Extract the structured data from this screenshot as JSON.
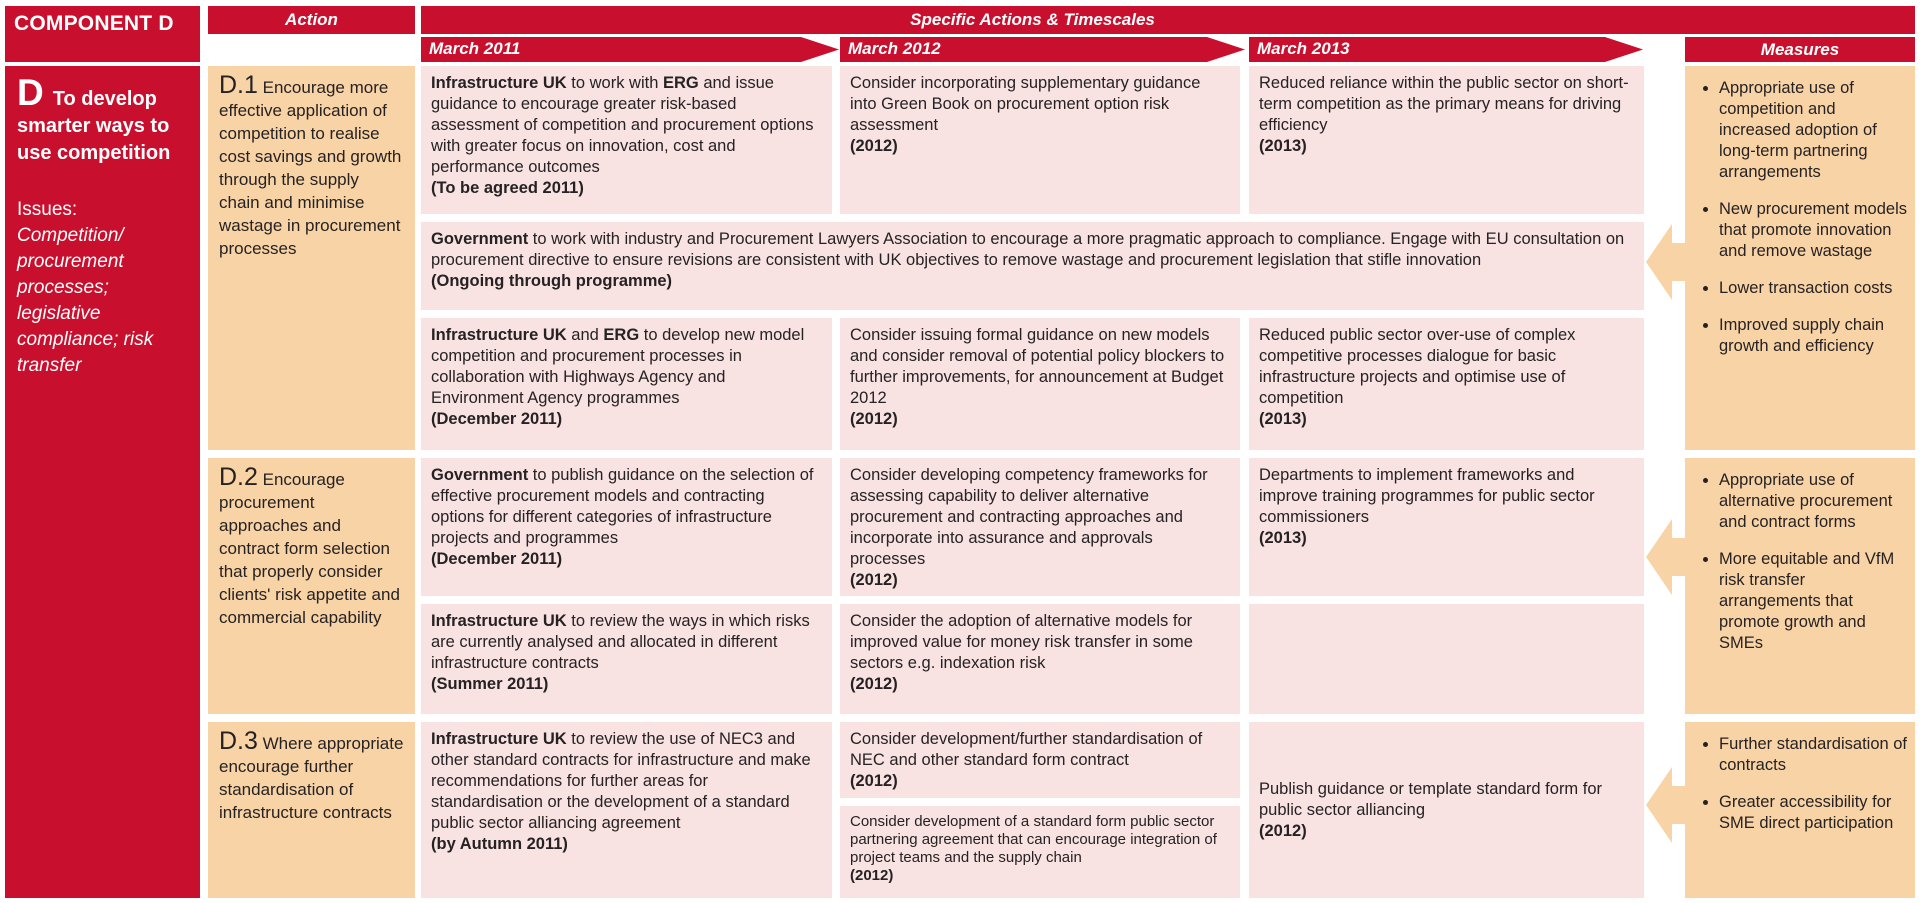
{
  "header": {
    "component": "COMPONENT D",
    "action": "Action",
    "specific": "Specific Actions & Timescales",
    "measures": "Measures",
    "timescales": [
      "March 2011",
      "March 2012",
      "March 2013"
    ]
  },
  "component": {
    "letter": "D",
    "title": "To develop smarter ways to use competition",
    "issues_label": "Issues:",
    "issues": "Competition/ procurement processes; legislative compliance; risk transfer"
  },
  "actions": [
    {
      "id": "D.1",
      "text": "Encourage more effective application of competition to realise cost savings and growth through the supply chain and minimise wastage in procurement processes"
    },
    {
      "id": "D.2",
      "text": "Encourage procurement approaches and contract form selection that properly consider clients' risk appetite and commercial capability"
    },
    {
      "id": "D.3",
      "text": "Where appropriate encourage further standardisation of infrastructure contracts"
    }
  ],
  "cells": {
    "d1r1c3": {
      "segments": [
        {
          "t": "Infrastructure UK",
          "b": true
        },
        {
          "t": " to work with ",
          "b": false
        },
        {
          "t": "ERG",
          "b": true
        },
        {
          "t": " and issue guidance to encourage greater risk-based assessment of competition and procurement options with greater focus on innovation, cost and performance outcomes",
          "b": false
        }
      ],
      "date": "(To be agreed 2011)"
    },
    "d1r1c4": {
      "segments": [
        {
          "t": "Consider incorporating supplementary guidance into Green Book on procurement option risk assessment",
          "b": false
        }
      ],
      "date": "(2012)"
    },
    "d1r1c5": {
      "segments": [
        {
          "t": "Reduced reliance within the public sector on short-term competition as the primary means for driving efficiency",
          "b": false
        }
      ],
      "date": "(2013)"
    },
    "d1r2": {
      "segments": [
        {
          "t": "Government",
          "b": true
        },
        {
          "t": " to work with industry and Procurement Lawyers Association to encourage a more pragmatic approach to compliance.  Engage with EU consultation on procurement directive to ensure revisions are consistent with UK objectives to remove wastage and procurement legislation that stifle innovation",
          "b": false
        }
      ],
      "date": "(Ongoing through programme)"
    },
    "d1r3c3": {
      "segments": [
        {
          "t": "Infrastructure UK",
          "b": true
        },
        {
          "t": " and ",
          "b": false
        },
        {
          "t": "ERG",
          "b": true
        },
        {
          "t": " to develop new model competition and procurement processes in collaboration with Highways Agency and Environment Agency programmes",
          "b": false
        }
      ],
      "date": "(December 2011)"
    },
    "d1r3c4": {
      "segments": [
        {
          "t": "Consider issuing formal guidance on new models and consider removal of potential policy blockers to further improvements, for announcement at Budget 2012",
          "b": false
        }
      ],
      "date": "(2012)"
    },
    "d1r3c5": {
      "segments": [
        {
          "t": "Reduced public sector over-use of complex competitive processes dialogue for basic infrastructure projects and optimise use of competition",
          "b": false
        }
      ],
      "date": "(2013)"
    },
    "d2r1c3": {
      "segments": [
        {
          "t": "Government",
          "b": true
        },
        {
          "t": " to publish guidance on the selection of effective procurement models and contracting options for different categories of infrastructure projects and programmes",
          "b": false
        }
      ],
      "date": "(December 2011)"
    },
    "d2r1c4": {
      "segments": [
        {
          "t": "Consider developing competency frameworks for assessing capability to deliver alternative procurement and contracting approaches and incorporate into assurance and approvals processes",
          "b": false
        }
      ],
      "date": "(2012)"
    },
    "d2r1c5": {
      "segments": [
        {
          "t": "Departments to implement frameworks and improve training programmes for public sector commissioners",
          "b": false
        }
      ],
      "date": "(2013)"
    },
    "d2r2c3": {
      "segments": [
        {
          "t": "Infrastructure UK",
          "b": true
        },
        {
          "t": " to review the ways in which risks are currently analysed and allocated in different infrastructure contracts",
          "b": false
        }
      ],
      "date": "(Summer 2011)"
    },
    "d2r2c4": {
      "segments": [
        {
          "t": "Consider the adoption of alternative models for improved value for money risk transfer in some sectors e.g. indexation risk",
          "b": false
        }
      ],
      "date": "(2012)"
    },
    "d3c3": {
      "segments": [
        {
          "t": "Infrastructure UK",
          "b": true
        },
        {
          "t": " to review the use of NEC3 and other standard contracts for infrastructure and make recommendations for further areas for standardisation or the development of a standard public sector alliancing agreement",
          "b": false
        }
      ],
      "date": "(by Autumn 2011)"
    },
    "d3c4a": {
      "segments": [
        {
          "t": "Consider development/further standardisation of NEC and other standard form contract",
          "b": false
        }
      ],
      "date": "(2012)"
    },
    "d3c4b": {
      "segments": [
        {
          "t": "Consider development of a standard form public sector partnering agreement that can encourage integration of project teams and the supply chain",
          "b": false
        }
      ],
      "date": "(2012)"
    },
    "d3c5": {
      "segments": [
        {
          "t": "Publish guidance or template standard form for public sector alliancing",
          "b": false
        }
      ],
      "date": "(2012)"
    }
  },
  "measures": [
    {
      "items": [
        "Appropriate use of competition and increased adoption of long-term partnering arrangements",
        "New procurement models that promote innovation and remove wastage",
        "Lower transaction costs",
        "Improved supply chain growth and efficiency"
      ]
    },
    {
      "items": [
        "Appropriate use of alternative procurement and contract forms",
        "More equitable and VfM risk transfer arrangements that promote growth and SMEs"
      ]
    },
    {
      "items": [
        "Further standardisation of contracts",
        "Greater accessibility for SME direct participation"
      ]
    }
  ],
  "colors": {
    "red": "#C8102E",
    "peach": "#F8D3A5",
    "pink": "#F8E2E2",
    "text": "#262223",
    "white": "#FFFFFF"
  }
}
